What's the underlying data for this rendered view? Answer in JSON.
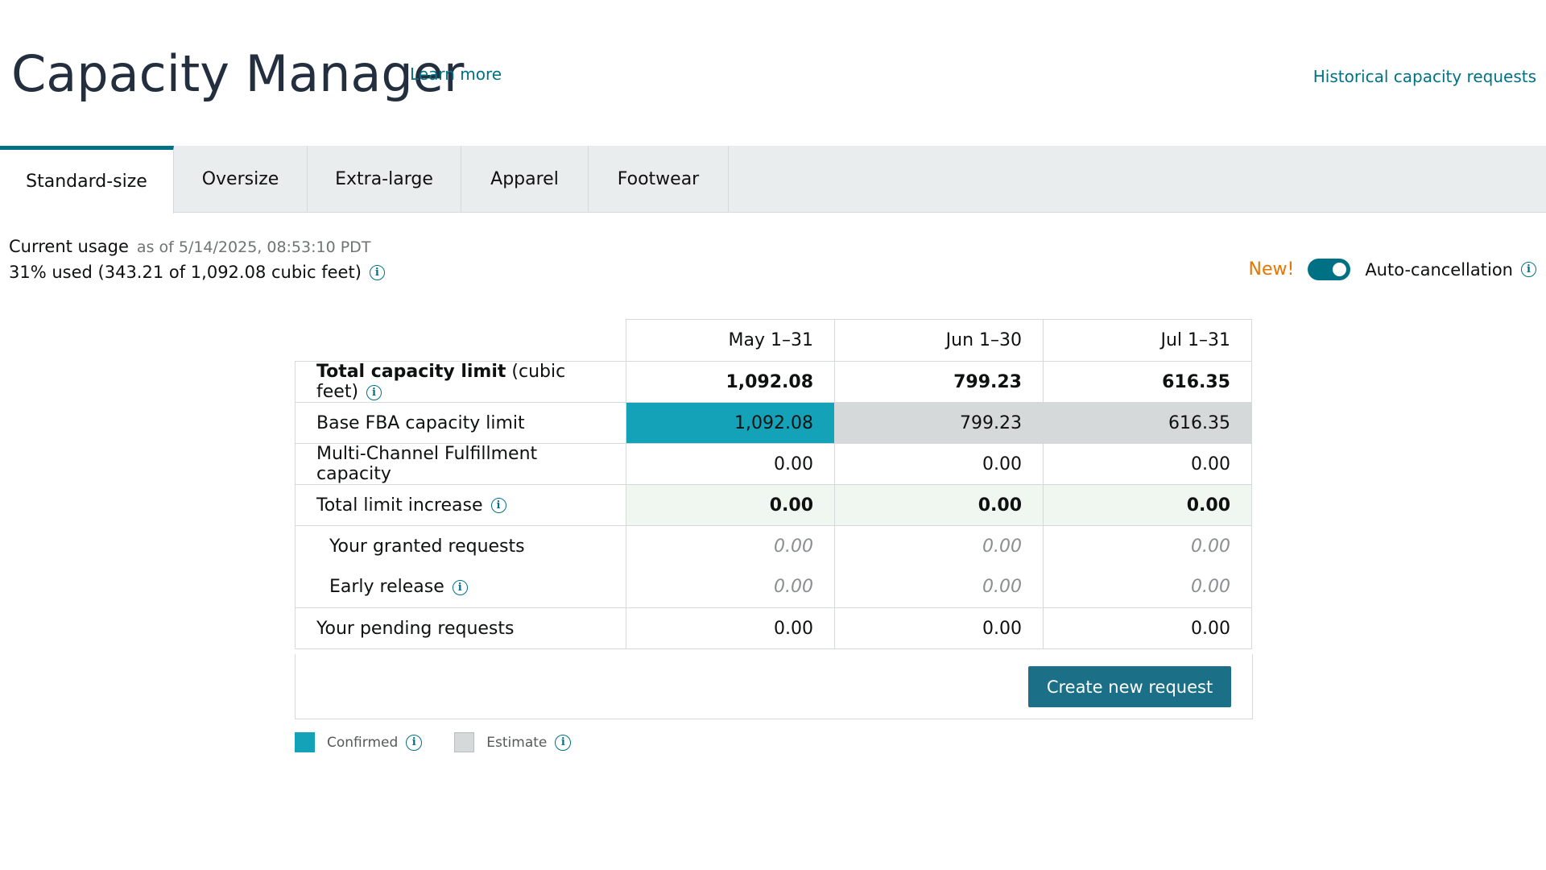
{
  "header": {
    "title": "Capacity Manager",
    "learn_more": "Learn more",
    "historical_link": "Historical capacity requests"
  },
  "tabs": [
    {
      "label": "Standard-size",
      "active": true
    },
    {
      "label": "Oversize",
      "active": false
    },
    {
      "label": "Extra-large",
      "active": false
    },
    {
      "label": "Apparel",
      "active": false
    },
    {
      "label": "Footwear",
      "active": false
    }
  ],
  "usage": {
    "label": "Current usage",
    "as_of": "as of 5/14/2025, 08:53:10 PDT",
    "value": "31% used (343.21 of 1,092.08 cubic feet)"
  },
  "auto_cancellation": {
    "badge": "New!",
    "label": "Auto-cancellation",
    "enabled": true
  },
  "table": {
    "columns": [
      "May 1–31",
      "Jun 1–30",
      "Jul 1–31"
    ],
    "total_capacity": {
      "label_bold": "Total capacity limit",
      "label_suffix": " (cubic feet)",
      "values": [
        "1,092.08",
        "799.23",
        "616.35"
      ]
    },
    "base_fba": {
      "label": "Base FBA capacity limit",
      "values": [
        "1,092.08",
        "799.23",
        "616.35"
      ]
    },
    "mcf": {
      "label": "Multi-Channel Fulfillment capacity",
      "values": [
        "0.00",
        "0.00",
        "0.00"
      ]
    },
    "total_increase": {
      "label": "Total limit increase",
      "values": [
        "0.00",
        "0.00",
        "0.00"
      ]
    },
    "granted": {
      "label": "Your granted requests",
      "values": [
        "0.00",
        "0.00",
        "0.00"
      ]
    },
    "early_release": {
      "label": "Early release",
      "values": [
        "0.00",
        "0.00",
        "0.00"
      ]
    },
    "pending": {
      "label": "Your pending requests",
      "values": [
        "0.00",
        "0.00",
        "0.00"
      ]
    }
  },
  "create_button": "Create new request",
  "legend": {
    "confirmed": "Confirmed",
    "estimate": "Estimate"
  },
  "colors": {
    "accent": "#007185",
    "confirmed": "#13a2b8",
    "estimate": "#d5d9d9",
    "new_badge": "#e77600",
    "button": "#1b6f86"
  }
}
